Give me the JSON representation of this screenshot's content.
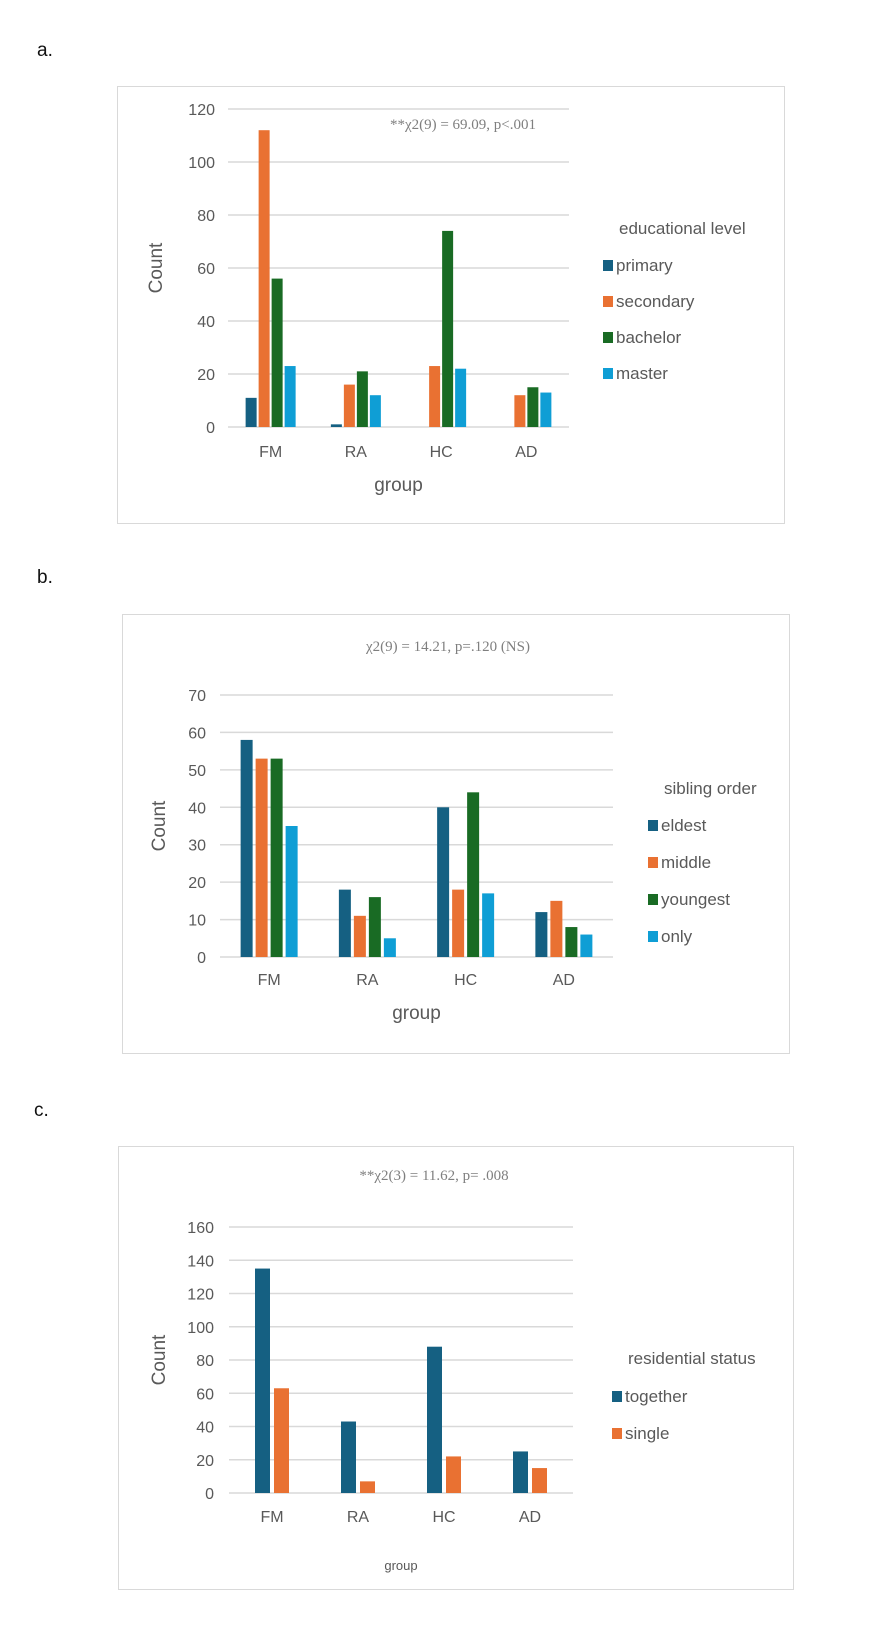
{
  "panels": [
    "a.",
    "b.",
    "c."
  ],
  "colors": {
    "series1": "#156082",
    "series2": "#E97132",
    "series3": "#196B24",
    "series4": "#0F9ED5"
  },
  "chart_data": [
    {
      "type": "bar",
      "panel": "a.",
      "title": "**χ2(9) = 69.09, p<.001",
      "xlabel": "group",
      "ylabel": "Count",
      "categories": [
        "FM",
        "RA",
        "HC",
        "AD"
      ],
      "ylim": [
        0,
        120
      ],
      "yticks": [
        0,
        20,
        40,
        60,
        80,
        100,
        120
      ],
      "grid": true,
      "legend_title": "educational level",
      "legend_position": "right",
      "series": [
        {
          "name": "primary",
          "color": "#156082",
          "values": [
            11,
            1,
            0,
            0
          ]
        },
        {
          "name": "secondary",
          "color": "#E97132",
          "values": [
            112,
            16,
            23,
            12
          ]
        },
        {
          "name": "bachelor",
          "color": "#196B24",
          "values": [
            56,
            21,
            74,
            15
          ]
        },
        {
          "name": "master",
          "color": "#0F9ED5",
          "values": [
            23,
            12,
            22,
            13
          ]
        }
      ]
    },
    {
      "type": "bar",
      "panel": "b.",
      "title": "χ2(9) = 14.21, p=.120 (NS)",
      "xlabel": "group",
      "ylabel": "Count",
      "categories": [
        "FM",
        "RA",
        "HC",
        "AD"
      ],
      "ylim": [
        0,
        70
      ],
      "yticks": [
        0,
        10,
        20,
        30,
        40,
        50,
        60,
        70
      ],
      "grid": true,
      "legend_title": "sibling order",
      "legend_position": "right",
      "series": [
        {
          "name": "eldest",
          "color": "#156082",
          "values": [
            58,
            18,
            40,
            12
          ]
        },
        {
          "name": "middle",
          "color": "#E97132",
          "values": [
            53,
            11,
            18,
            15
          ]
        },
        {
          "name": "youngest",
          "color": "#196B24",
          "values": [
            53,
            16,
            44,
            8
          ]
        },
        {
          "name": "only",
          "color": "#0F9ED5",
          "values": [
            35,
            5,
            17,
            6
          ]
        }
      ]
    },
    {
      "type": "bar",
      "panel": "c.",
      "title": "**χ2(3) = 11.62, p= .008",
      "xlabel": "group",
      "ylabel": "Count",
      "categories": [
        "FM",
        "RA",
        "HC",
        "AD"
      ],
      "ylim": [
        0,
        160
      ],
      "yticks": [
        0,
        20,
        40,
        60,
        80,
        100,
        120,
        140,
        160
      ],
      "grid": true,
      "legend_title": "residential status",
      "legend_position": "right",
      "series": [
        {
          "name": "together",
          "color": "#156082",
          "values": [
            135,
            43,
            88,
            25
          ]
        },
        {
          "name": "single",
          "color": "#E97132",
          "values": [
            63,
            7,
            22,
            15
          ]
        }
      ]
    }
  ]
}
